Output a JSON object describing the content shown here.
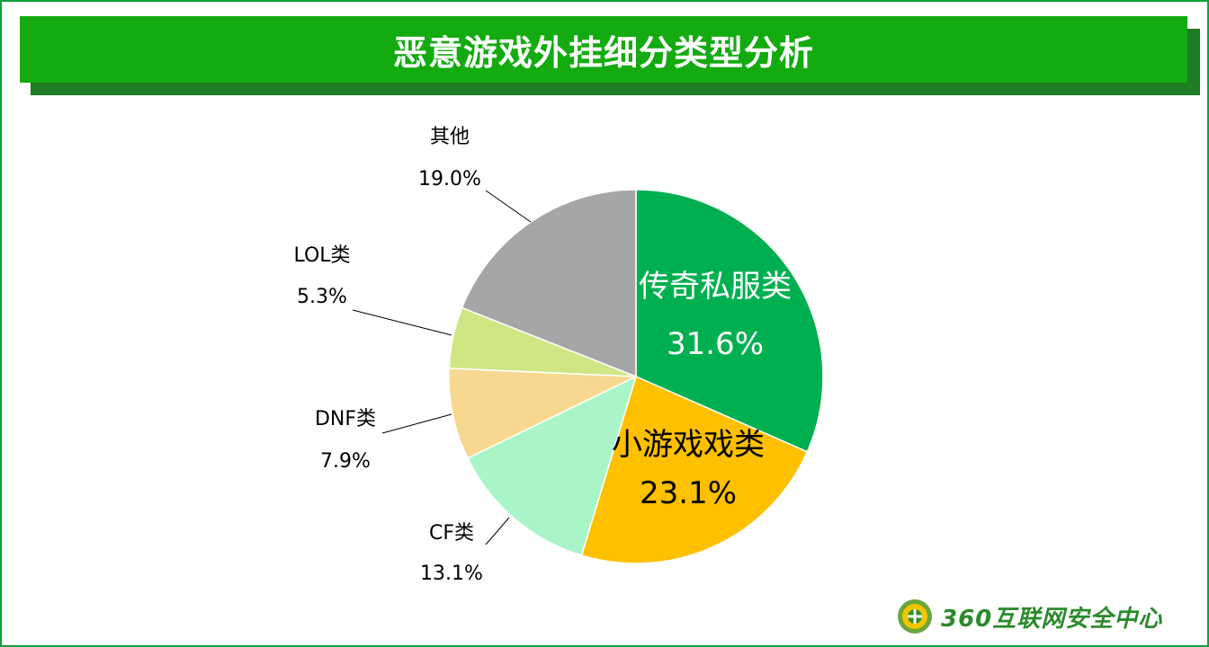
{
  "title": "恶意游戏外挂细分类型分析",
  "logo_text": "360互联网安全中心",
  "chart_data": {
    "type": "pie",
    "title": "恶意游戏外挂细分类型分析",
    "slices": [
      {
        "name": "传奇私服类",
        "value": 31.6,
        "label": "31.6%",
        "color": "#00b050",
        "label_position": "inside",
        "text_color": "#ffffff"
      },
      {
        "name": "小游戏戏类",
        "value": 23.1,
        "label": "23.1%",
        "color": "#ffc000",
        "label_position": "inside",
        "text_color": "#000000"
      },
      {
        "name": "CF类",
        "value": 13.1,
        "label": "13.1%",
        "color": "#a9f5c8",
        "label_position": "outside",
        "text_color": "#000000"
      },
      {
        "name": "DNF类",
        "value": 7.9,
        "label": "7.9%",
        "color": "#f8d890",
        "label_position": "outside",
        "text_color": "#000000"
      },
      {
        "name": "LOL类",
        "value": 5.3,
        "label": "5.3%",
        "color": "#cfe685",
        "label_position": "outside",
        "text_color": "#000000"
      },
      {
        "name": "其他",
        "value": 19.0,
        "label": "19.0%",
        "color": "#a6a6a6",
        "label_position": "outside",
        "text_color": "#000000"
      }
    ],
    "start": "12 o'clock",
    "direction": "clockwise",
    "legend": "none"
  },
  "colors": {
    "title_bar": "#13ab10",
    "title_shadow": "#1e7c22",
    "frame_border": "#0aa33a",
    "logo_green": "#2c8a2c"
  }
}
